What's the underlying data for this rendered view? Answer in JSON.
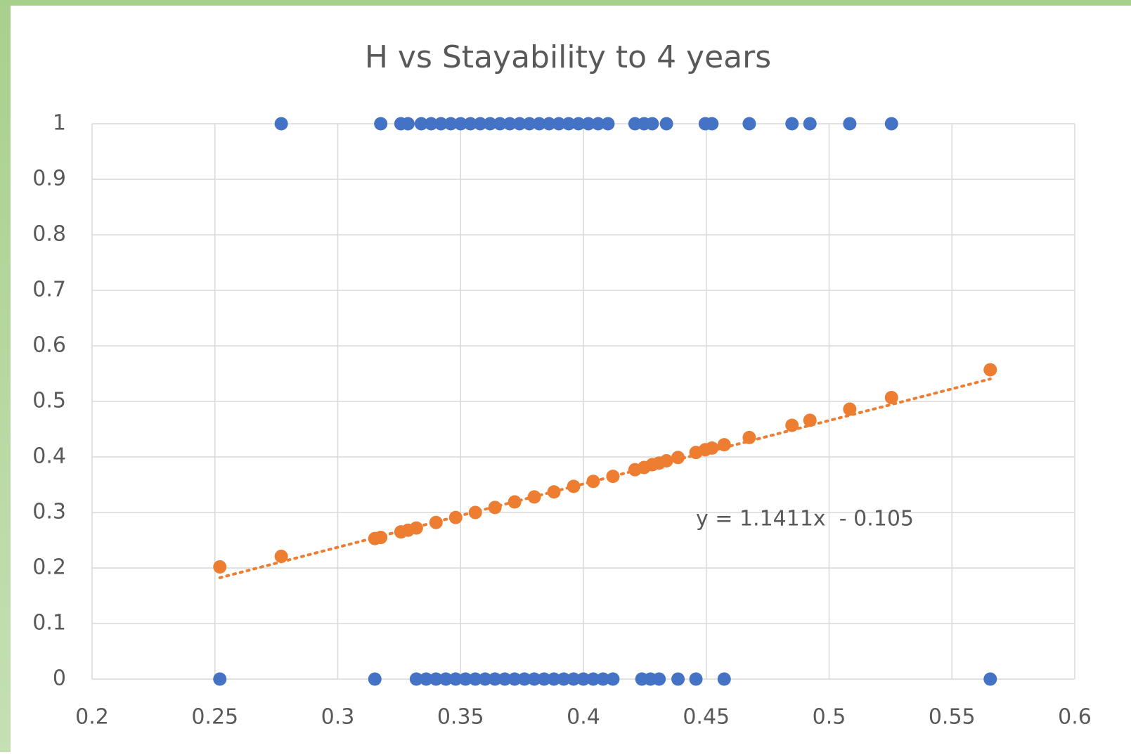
{
  "chart_data": {
    "type": "scatter",
    "title": "H vs Stayability to 4 years",
    "xlim": [
      0.2,
      0.6
    ],
    "xticks": [
      0.2,
      0.25,
      0.3,
      0.35,
      0.4,
      0.45,
      0.5,
      0.55,
      0.6
    ],
    "ylim": [
      0,
      1
    ],
    "yticks": [
      0,
      0.1,
      0.2,
      0.3,
      0.4,
      0.5,
      0.6,
      0.7,
      0.8,
      0.9,
      1
    ],
    "grid": true,
    "series": [
      {
        "color": "#4472c4",
        "x": [
          0.277,
          0.3175,
          0.3257,
          0.3286,
          0.334,
          0.338,
          0.342,
          0.346,
          0.35,
          0.354,
          0.358,
          0.362,
          0.366,
          0.37,
          0.374,
          0.378,
          0.382,
          0.386,
          0.39,
          0.394,
          0.398,
          0.402,
          0.406,
          0.41,
          0.421,
          0.4247,
          0.428,
          0.4338,
          0.4496,
          0.4523,
          0.4675,
          0.4849,
          0.4922,
          0.5084,
          0.5254
        ],
        "values": [
          1,
          1,
          1,
          1,
          1,
          1,
          1,
          1,
          1,
          1,
          1,
          1,
          1,
          1,
          1,
          1,
          1,
          1,
          1,
          1,
          1,
          1,
          1,
          1,
          1,
          1,
          1,
          1,
          1,
          1,
          1,
          1,
          1,
          1,
          1
        ]
      },
      {
        "color": "#4472c4",
        "x": [
          0.252,
          0.3151,
          0.332,
          0.336,
          0.34,
          0.344,
          0.348,
          0.352,
          0.356,
          0.36,
          0.364,
          0.368,
          0.372,
          0.376,
          0.38,
          0.384,
          0.388,
          0.392,
          0.396,
          0.4,
          0.404,
          0.408,
          0.412,
          0.4238,
          0.4273,
          0.4308,
          0.4385,
          0.4458,
          0.4573,
          0.5656
        ],
        "values": [
          0,
          0,
          0,
          0,
          0,
          0,
          0,
          0,
          0,
          0,
          0,
          0,
          0,
          0,
          0,
          0,
          0,
          0,
          0,
          0,
          0,
          0,
          0,
          0,
          0,
          0,
          0,
          0,
          0,
          0
        ]
      },
      {
        "color": "#ed7d31",
        "x": [
          0.252,
          0.277,
          0.3151,
          0.3175,
          0.3257,
          0.3286,
          0.332,
          0.34,
          0.348,
          0.356,
          0.364,
          0.372,
          0.38,
          0.388,
          0.396,
          0.404,
          0.412,
          0.421,
          0.4247,
          0.428,
          0.4308,
          0.4338,
          0.4385,
          0.4458,
          0.4496,
          0.4523,
          0.4573,
          0.4675,
          0.4849,
          0.4922,
          0.5084,
          0.5254,
          0.5656
        ],
        "values": [
          0.202,
          0.221,
          0.253,
          0.255,
          0.265,
          0.268,
          0.272,
          0.282,
          0.291,
          0.3,
          0.309,
          0.319,
          0.328,
          0.337,
          0.347,
          0.356,
          0.365,
          0.377,
          0.381,
          0.386,
          0.389,
          0.393,
          0.399,
          0.408,
          0.413,
          0.416,
          0.422,
          0.435,
          0.457,
          0.466,
          0.486,
          0.507,
          0.557
        ]
      }
    ],
    "trendline": {
      "slope": 1.1411,
      "intercept": -0.105,
      "color": "#ed7d31",
      "label": "y = 1.1411x  - 0.105"
    }
  }
}
